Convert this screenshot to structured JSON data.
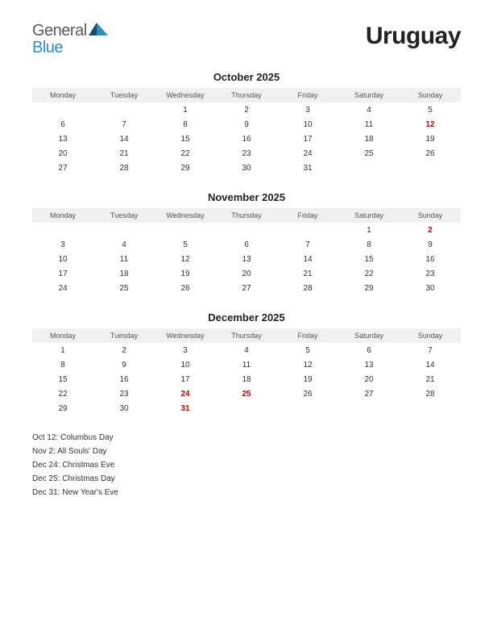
{
  "logo": {
    "part1": "General",
    "part2": "Blue"
  },
  "country": "Uruguay",
  "weekdays": [
    "Monday",
    "Tuesday",
    "Wednesday",
    "Thursday",
    "Friday",
    "Saturday",
    "Sunday"
  ],
  "months": [
    {
      "title": "October 2025",
      "weeks": [
        [
          {
            "d": ""
          },
          {
            "d": ""
          },
          {
            "d": "1"
          },
          {
            "d": "2"
          },
          {
            "d": "3"
          },
          {
            "d": "4"
          },
          {
            "d": "5"
          }
        ],
        [
          {
            "d": "6"
          },
          {
            "d": "7"
          },
          {
            "d": "8"
          },
          {
            "d": "9"
          },
          {
            "d": "10"
          },
          {
            "d": "11"
          },
          {
            "d": "12",
            "hol": true
          }
        ],
        [
          {
            "d": "13"
          },
          {
            "d": "14"
          },
          {
            "d": "15"
          },
          {
            "d": "16"
          },
          {
            "d": "17"
          },
          {
            "d": "18"
          },
          {
            "d": "19"
          }
        ],
        [
          {
            "d": "20"
          },
          {
            "d": "21"
          },
          {
            "d": "22"
          },
          {
            "d": "23"
          },
          {
            "d": "24"
          },
          {
            "d": "25"
          },
          {
            "d": "26"
          }
        ],
        [
          {
            "d": "27"
          },
          {
            "d": "28"
          },
          {
            "d": "29"
          },
          {
            "d": "30"
          },
          {
            "d": "31"
          },
          {
            "d": ""
          },
          {
            "d": ""
          }
        ]
      ]
    },
    {
      "title": "November 2025",
      "weeks": [
        [
          {
            "d": ""
          },
          {
            "d": ""
          },
          {
            "d": ""
          },
          {
            "d": ""
          },
          {
            "d": ""
          },
          {
            "d": "1"
          },
          {
            "d": "2",
            "hol": true
          }
        ],
        [
          {
            "d": "3"
          },
          {
            "d": "4"
          },
          {
            "d": "5"
          },
          {
            "d": "6"
          },
          {
            "d": "7"
          },
          {
            "d": "8"
          },
          {
            "d": "9"
          }
        ],
        [
          {
            "d": "10"
          },
          {
            "d": "11"
          },
          {
            "d": "12"
          },
          {
            "d": "13"
          },
          {
            "d": "14"
          },
          {
            "d": "15"
          },
          {
            "d": "16"
          }
        ],
        [
          {
            "d": "17"
          },
          {
            "d": "18"
          },
          {
            "d": "19"
          },
          {
            "d": "20"
          },
          {
            "d": "21"
          },
          {
            "d": "22"
          },
          {
            "d": "23"
          }
        ],
        [
          {
            "d": "24"
          },
          {
            "d": "25"
          },
          {
            "d": "26"
          },
          {
            "d": "27"
          },
          {
            "d": "28"
          },
          {
            "d": "29"
          },
          {
            "d": "30"
          }
        ]
      ]
    },
    {
      "title": "December 2025",
      "weeks": [
        [
          {
            "d": "1"
          },
          {
            "d": "2"
          },
          {
            "d": "3"
          },
          {
            "d": "4"
          },
          {
            "d": "5"
          },
          {
            "d": "6"
          },
          {
            "d": "7"
          }
        ],
        [
          {
            "d": "8"
          },
          {
            "d": "9"
          },
          {
            "d": "10"
          },
          {
            "d": "11"
          },
          {
            "d": "12"
          },
          {
            "d": "13"
          },
          {
            "d": "14"
          }
        ],
        [
          {
            "d": "15"
          },
          {
            "d": "16"
          },
          {
            "d": "17"
          },
          {
            "d": "18"
          },
          {
            "d": "19"
          },
          {
            "d": "20"
          },
          {
            "d": "21"
          }
        ],
        [
          {
            "d": "22"
          },
          {
            "d": "23"
          },
          {
            "d": "24",
            "hol": true
          },
          {
            "d": "25",
            "hol": true
          },
          {
            "d": "26"
          },
          {
            "d": "27"
          },
          {
            "d": "28"
          }
        ],
        [
          {
            "d": "29"
          },
          {
            "d": "30"
          },
          {
            "d": "31",
            "hol": true
          },
          {
            "d": ""
          },
          {
            "d": ""
          },
          {
            "d": ""
          },
          {
            "d": ""
          }
        ]
      ]
    }
  ],
  "holidays_list": [
    "Oct 12: Columbus Day",
    "Nov 2: All Souls' Day",
    "Dec 24: Christmas Eve",
    "Dec 25: Christmas Day",
    "Dec 31: New Year's Eve"
  ],
  "colors": {
    "holiday": "#cc0000",
    "header_bg": "#f0f0f0",
    "text": "#333333",
    "logo_blue": "#2b8fc4",
    "logo_gray": "#5a5a5a",
    "logo_dark": "#1a4d6b"
  }
}
